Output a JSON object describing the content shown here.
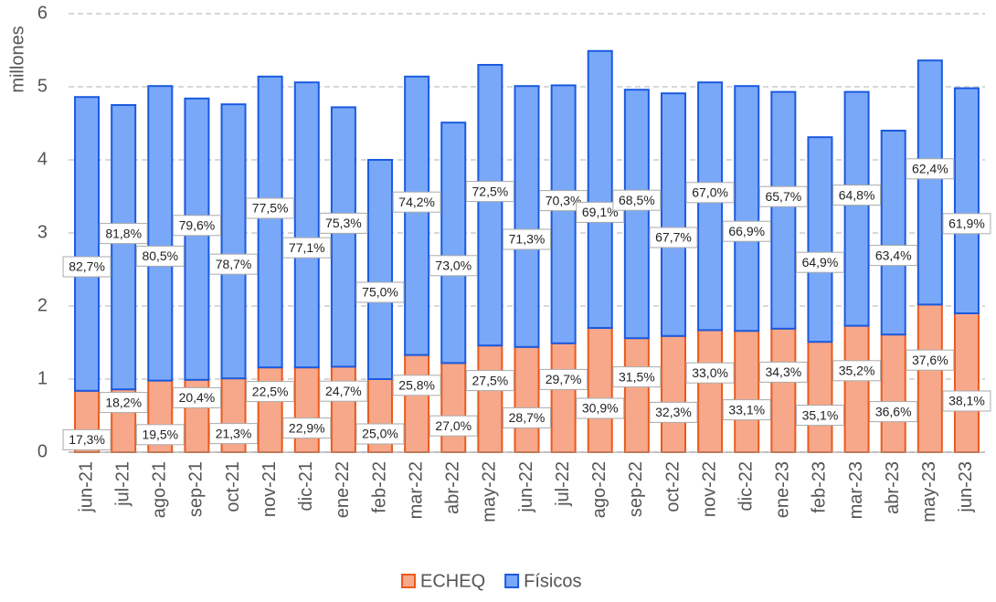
{
  "chart_data": {
    "type": "stacked_bar",
    "ylabel": "millones",
    "categories": [
      "jun-21",
      "jul-21",
      "ago-21",
      "sep-21",
      "oct-21",
      "nov-21",
      "dic-21",
      "ene-22",
      "feb-22",
      "mar-22",
      "abr-22",
      "may-22",
      "jun-22",
      "jul-22",
      "ago-22",
      "sep-22",
      "oct-22",
      "nov-22",
      "dic-22",
      "ene-23",
      "feb-23",
      "mar-23",
      "abr-23",
      "may-23",
      "jun-23"
    ],
    "series": [
      {
        "name": "ECHEQ",
        "color": "#f8a88a",
        "edgecolor": "#ea5a1c",
        "values": [
          0.84,
          0.86,
          0.98,
          0.99,
          1.01,
          1.16,
          1.16,
          1.17,
          1.0,
          1.33,
          1.22,
          1.46,
          1.44,
          1.49,
          1.7,
          1.56,
          1.59,
          1.67,
          1.66,
          1.69,
          1.51,
          1.73,
          1.61,
          2.02,
          1.9
        ],
        "labels": [
          "17,3%",
          "18,2%",
          "19,5%",
          "20,4%",
          "21,3%",
          "22,5%",
          "22,9%",
          "24,7%",
          "25,0%",
          "25,8%",
          "27,0%",
          "27,5%",
          "28,7%",
          "29,7%",
          "30,9%",
          "31,5%",
          "32,3%",
          "33,0%",
          "33,1%",
          "34,3%",
          "35,1%",
          "35,2%",
          "36,6%",
          "37,6%",
          "38,1%"
        ]
      },
      {
        "name": "Físicos",
        "color": "#7aa8f8",
        "edgecolor": "#1a5ae0",
        "values": [
          4.02,
          3.89,
          4.03,
          3.85,
          3.75,
          3.98,
          3.9,
          3.55,
          3.0,
          3.81,
          3.29,
          3.84,
          3.57,
          3.53,
          3.79,
          3.4,
          3.32,
          3.39,
          3.35,
          3.24,
          2.8,
          3.2,
          2.79,
          3.34,
          3.08
        ],
        "labels": [
          "82,7%",
          "81,8%",
          "80,5%",
          "79,6%",
          "78,7%",
          "77,5%",
          "77,1%",
          "75,3%",
          "75,0%",
          "74,2%",
          "73,0%",
          "72,5%",
          "71,3%",
          "70,3%",
          "69,1%",
          "68,5%",
          "67,7%",
          "67,0%",
          "66,9%",
          "65,7%",
          "64,9%",
          "64,8%",
          "63,4%",
          "62,4%",
          "61,9%"
        ]
      }
    ],
    "ylim": [
      0,
      6
    ],
    "yticks": [
      0,
      1,
      2,
      3,
      4,
      5,
      6
    ],
    "grid": true
  }
}
